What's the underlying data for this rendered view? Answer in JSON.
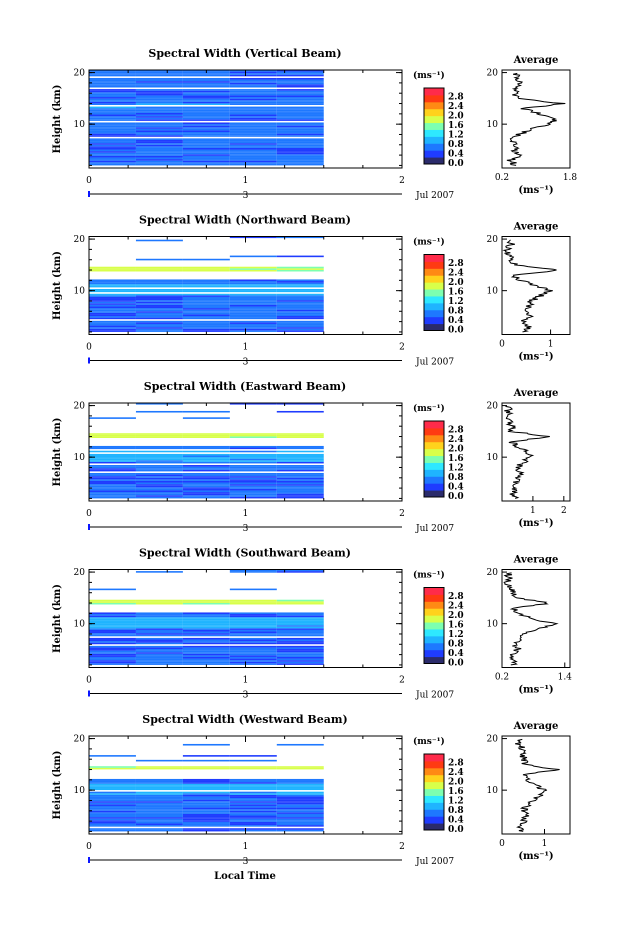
{
  "figure": {
    "xlabel": "Local Time",
    "date_label": "Jul 2007",
    "day_label": "3",
    "colorbar_unit": "(ms⁻¹)",
    "colorbar_ticks": [
      "0.0",
      "0.4",
      "0.8",
      "1.2",
      "1.6",
      "2.0",
      "2.4",
      "2.8"
    ],
    "colorbar_range": [
      0,
      3.0
    ],
    "colormap": [
      "#2b2b6b",
      "#1f3cff",
      "#1e78ff",
      "#1fb4ff",
      "#2ee8ff",
      "#7dffb0",
      "#d8ff4a",
      "#ffd21c",
      "#ff8a14",
      "#ff3a12",
      "#ff2b4a"
    ],
    "average_title": "Average",
    "average_xlabel": "(ms⁻¹)",
    "accent": "#0b16ff"
  },
  "chart_data": [
    {
      "type": "heatmap",
      "title": "Spectral Width (Vertical Beam)",
      "ylabel": "Height (km)",
      "x_ticks": [
        "0",
        "1",
        "2"
      ],
      "xlim": [
        0,
        2
      ],
      "y_ticks": [
        "20",
        "10"
      ],
      "ylim": [
        1.5,
        20.5
      ],
      "data_x_range": [
        0,
        1.5
      ],
      "avg_ticks": [
        "0.2",
        "1.8"
      ],
      "avg_tick_values": [
        0.2,
        1.8
      ],
      "avg_xlim": [
        0.2,
        1.8
      ],
      "avg_profile": [
        [
          2,
          0.5
        ],
        [
          3,
          0.4
        ],
        [
          4,
          0.6
        ],
        [
          5,
          0.5
        ],
        [
          6,
          0.55
        ],
        [
          7,
          0.45
        ],
        [
          8,
          0.6
        ],
        [
          9,
          0.9
        ],
        [
          10,
          1.3
        ],
        [
          11,
          1.5
        ],
        [
          12,
          1.1
        ],
        [
          13,
          0.7
        ],
        [
          14,
          1.6
        ],
        [
          15,
          0.6
        ],
        [
          16,
          0.5
        ],
        [
          17,
          0.55
        ],
        [
          18,
          0.6
        ],
        [
          19,
          0.5
        ],
        [
          20,
          0.55
        ]
      ]
    },
    {
      "type": "heatmap",
      "title": "Spectral Width (Northward Beam)",
      "ylabel": "Height (km)",
      "x_ticks": [
        "0",
        "1",
        "2"
      ],
      "xlim": [
        0,
        2
      ],
      "y_ticks": [
        "20",
        "10"
      ],
      "ylim": [
        1.5,
        20.5
      ],
      "data_x_range": [
        0,
        1.5
      ],
      "avg_ticks": [
        "0",
        "1"
      ],
      "avg_tick_values": [
        0,
        1
      ],
      "avg_xlim": [
        0,
        1.4
      ],
      "avg_profile": [
        [
          2,
          0.5
        ],
        [
          3,
          0.55
        ],
        [
          4,
          0.45
        ],
        [
          5,
          0.6
        ],
        [
          6,
          0.5
        ],
        [
          7,
          0.55
        ],
        [
          8,
          0.6
        ],
        [
          9,
          0.8
        ],
        [
          10,
          1.0
        ],
        [
          11,
          0.7
        ],
        [
          12,
          0.4
        ],
        [
          13,
          0.2
        ],
        [
          14,
          1.2
        ],
        [
          15,
          0.3
        ],
        [
          16,
          0.2
        ],
        [
          17,
          0.15
        ],
        [
          18,
          0.1
        ],
        [
          19,
          0.2
        ],
        [
          20,
          0.1
        ]
      ]
    },
    {
      "type": "heatmap",
      "title": "Spectral Width (Eastward Beam)",
      "ylabel": "Height (km)",
      "x_ticks": [
        "0",
        "1",
        "2"
      ],
      "xlim": [
        0,
        2
      ],
      "y_ticks": [
        "20",
        "10"
      ],
      "ylim": [
        1.5,
        20.5
      ],
      "data_x_range": [
        0,
        1.5
      ],
      "avg_ticks": [
        "1",
        "2"
      ],
      "avg_tick_values": [
        1,
        2
      ],
      "avg_xlim": [
        0,
        2.2
      ],
      "avg_profile": [
        [
          2,
          0.4
        ],
        [
          3,
          0.35
        ],
        [
          4,
          0.45
        ],
        [
          5,
          0.4
        ],
        [
          6,
          0.5
        ],
        [
          7,
          0.6
        ],
        [
          8,
          0.5
        ],
        [
          9,
          0.7
        ],
        [
          10,
          0.9
        ],
        [
          11,
          0.8
        ],
        [
          12,
          0.5
        ],
        [
          13,
          0.3
        ],
        [
          14,
          1.5
        ],
        [
          15,
          0.3
        ],
        [
          16,
          0.35
        ],
        [
          17,
          0.2
        ],
        [
          18,
          0.3
        ],
        [
          19,
          0.2
        ],
        [
          20,
          0.25
        ]
      ]
    },
    {
      "type": "heatmap",
      "title": "Spectral Width (Southward Beam)",
      "ylabel": "Height (km)",
      "x_ticks": [
        "0",
        "1",
        "2"
      ],
      "xlim": [
        0,
        2
      ],
      "y_ticks": [
        "20",
        "10"
      ],
      "ylim": [
        1.5,
        20.5
      ],
      "data_x_range": [
        0,
        1.5
      ],
      "avg_ticks": [
        "0.2",
        "1.4"
      ],
      "avg_tick_values": [
        0.2,
        1.4
      ],
      "avg_xlim": [
        0.2,
        1.5
      ],
      "avg_profile": [
        [
          2,
          0.4
        ],
        [
          3,
          0.45
        ],
        [
          4,
          0.4
        ],
        [
          5,
          0.5
        ],
        [
          6,
          0.45
        ],
        [
          7,
          0.5
        ],
        [
          8,
          0.6
        ],
        [
          9,
          0.9
        ],
        [
          10,
          1.2
        ],
        [
          11,
          0.8
        ],
        [
          12,
          0.5
        ],
        [
          13,
          0.4
        ],
        [
          14,
          1.1
        ],
        [
          15,
          0.5
        ],
        [
          16,
          0.4
        ],
        [
          17,
          0.35
        ],
        [
          18,
          0.3
        ],
        [
          19,
          0.35
        ],
        [
          20,
          0.3
        ]
      ]
    },
    {
      "type": "heatmap",
      "title": "Spectral Width (Westward Beam)",
      "ylabel": "Height (km)",
      "x_ticks": [
        "0",
        "1",
        "2"
      ],
      "xlim": [
        0,
        2
      ],
      "y_ticks": [
        "20",
        "10"
      ],
      "ylim": [
        1.5,
        20.5
      ],
      "data_x_range": [
        0,
        1.5
      ],
      "avg_ticks": [
        "0",
        "1"
      ],
      "avg_tick_values": [
        0,
        1
      ],
      "avg_xlim": [
        0,
        1.6
      ],
      "avg_profile": [
        [
          2,
          0.5
        ],
        [
          3,
          0.45
        ],
        [
          4,
          0.5
        ],
        [
          5,
          0.55
        ],
        [
          6,
          0.5
        ],
        [
          7,
          0.6
        ],
        [
          8,
          0.7
        ],
        [
          9,
          0.9
        ],
        [
          10,
          1.0
        ],
        [
          11,
          0.8
        ],
        [
          12,
          0.6
        ],
        [
          13,
          0.5
        ],
        [
          14,
          1.3
        ],
        [
          15,
          0.5
        ],
        [
          16,
          0.55
        ],
        [
          17,
          0.45
        ],
        [
          18,
          0.5
        ],
        [
          19,
          0.4
        ],
        [
          20,
          0.45
        ]
      ]
    }
  ]
}
